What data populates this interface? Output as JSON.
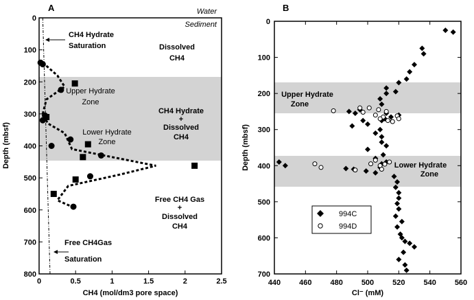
{
  "panels": [
    {
      "label": "A",
      "xlabel": "CH4 (mol/dm3 pore space)",
      "ylabel": "Depth (mbsf)",
      "xticks": [
        "0",
        "0.5",
        "1",
        "1.5",
        "2",
        "2.5"
      ],
      "yticks": [
        "0",
        "100",
        "200",
        "300",
        "400",
        "500",
        "600",
        "700",
        "800"
      ],
      "annotations": {
        "water": "Water",
        "sediment": "Sediment",
        "hydrate_saturation": [
          "CH4 Hydrate",
          "Saturation"
        ],
        "dissolved": [
          "Dissolved",
          "CH4"
        ],
        "upper_zone": [
          "Upper Hydrate",
          "Zone"
        ],
        "hydrate_dissolved": [
          "CH4 Hydrate",
          "+",
          "Dissolved",
          "CH4"
        ],
        "lower_zone": [
          "Lower Hydrate",
          "Zone"
        ],
        "free_gas": [
          "Free CH4 Gas",
          "+",
          "Dissolved",
          "CH4"
        ],
        "gas_saturation": [
          "Free CH4Gas",
          "Saturation"
        ]
      }
    },
    {
      "label": "B",
      "xlabel": "Cl⁻ (mM)",
      "ylabel": "Depth (mbsf)",
      "xticks": [
        "440",
        "460",
        "480",
        "500",
        "520",
        "540",
        "560"
      ],
      "yticks": [
        "0",
        "100",
        "200",
        "300",
        "400",
        "500",
        "600",
        "700"
      ],
      "annotations": {
        "upper_zone": [
          "Upper Hydrate",
          "Zone"
        ],
        "lower_zone": [
          "Lower Hydrate",
          "Zone"
        ]
      },
      "legend": [
        "994C",
        "994D"
      ]
    }
  ],
  "chart_data": [
    {
      "type": "scatter",
      "panel": "A",
      "xlabel": "CH4 (mol/dm3 pore space)",
      "ylabel": "Depth (mbsf)",
      "xlim": [
        0,
        2.5
      ],
      "ylim": [
        800,
        0
      ],
      "y_inverted": true,
      "shaded_band": [
        190,
        450
      ],
      "series": [
        {
          "marker": "circle",
          "points": [
            [
              0.02,
              140
            ],
            [
              0.05,
              145
            ],
            [
              0.3,
              225
            ],
            [
              0.08,
              305
            ],
            [
              0.05,
              320
            ],
            [
              0.43,
              380
            ],
            [
              0.17,
              400
            ],
            [
              0.85,
              430
            ],
            [
              0.7,
              495
            ],
            [
              0.47,
              590
            ]
          ]
        },
        {
          "marker": "square",
          "points": [
            [
              0.49,
              205
            ],
            [
              0.1,
              310
            ],
            [
              0.67,
              395
            ],
            [
              0.6,
              435
            ],
            [
              2.13,
              462
            ],
            [
              0.5,
              505
            ],
            [
              0.2,
              550
            ]
          ]
        },
        {
          "style": "dashed",
          "points": [
            [
              0.05,
              140
            ],
            [
              0.25,
              180
            ],
            [
              0.35,
              215
            ],
            [
              0.1,
              255
            ],
            [
              0.05,
              300
            ],
            [
              0.12,
              330
            ],
            [
              0.35,
              360
            ],
            [
              0.45,
              410
            ],
            [
              1.0,
              435
            ],
            [
              1.6,
              462
            ],
            [
              1.1,
              490
            ],
            [
              0.4,
              525
            ],
            [
              0.25,
              570
            ],
            [
              0.45,
              590
            ]
          ]
        },
        {
          "name": "CH4 Hydrate Saturation",
          "style": "dash-dot",
          "points": [
            [
              0.05,
              0
            ],
            [
              0.15,
              800
            ]
          ]
        }
      ]
    },
    {
      "type": "scatter",
      "panel": "B",
      "xlabel": "Cl⁻ (mM)",
      "ylabel": "Depth (mbsf)",
      "xlim": [
        440,
        560
      ],
      "ylim": [
        700,
        0
      ],
      "y_inverted": true,
      "shaded_bands": [
        [
          180,
          265
        ],
        [
          380,
          470
        ]
      ],
      "legend_position": "bottom-left",
      "series": [
        {
          "name": "994C",
          "marker": "filled-diamond",
          "points": [
            [
              550,
              25
            ],
            [
              555,
              30
            ],
            [
              535,
              75
            ],
            [
              536,
              90
            ],
            [
              530,
              120
            ],
            [
              527,
              140
            ],
            [
              525,
              160
            ],
            [
              520,
              170
            ],
            [
              512,
              185
            ],
            [
              518,
              195
            ],
            [
              512,
              200
            ],
            [
              508,
              215
            ],
            [
              509,
              230
            ],
            [
              495,
              245
            ],
            [
              488,
              250
            ],
            [
              492,
              255
            ],
            [
              512,
              255
            ],
            [
              520,
              260
            ],
            [
              515,
              265
            ],
            [
              511,
              270
            ],
            [
              509,
              275
            ],
            [
              497,
              275
            ],
            [
              500,
              285
            ],
            [
              490,
              290
            ],
            [
              508,
              300
            ],
            [
              505,
              310
            ],
            [
              509,
              320
            ],
            [
              509,
              335
            ],
            [
              512,
              345
            ],
            [
              500,
              355
            ],
            [
              510,
              370
            ],
            [
              505,
              380
            ],
            [
              512,
              390
            ],
            [
              509,
              395
            ],
            [
              508,
              405
            ],
            [
              491,
              410
            ],
            [
              499,
              415
            ],
            [
              486,
              408
            ],
            [
              447,
              400
            ],
            [
              443,
              390
            ],
            [
              505,
              420
            ],
            [
              517,
              430
            ],
            [
              519,
              445
            ],
            [
              518,
              460
            ],
            [
              520,
              475
            ],
            [
              520,
              490
            ],
            [
              519,
              505
            ],
            [
              520,
              520
            ],
            [
              518,
              540
            ],
            [
              522,
              555
            ],
            [
              519,
              570
            ],
            [
              521,
              590
            ],
            [
              522,
              600
            ],
            [
              524,
              610
            ],
            [
              527,
              615
            ],
            [
              530,
              625
            ],
            [
              523,
              640
            ],
            [
              520,
              660
            ],
            [
              524,
              675
            ],
            [
              525,
              690
            ]
          ]
        },
        {
          "name": "994D",
          "marker": "open-circle",
          "points": [
            [
              478,
              248
            ],
            [
              495,
              240
            ],
            [
              497,
              252
            ],
            [
              501,
              240
            ],
            [
              507,
              245
            ],
            [
              512,
              250
            ],
            [
              505,
              260
            ],
            [
              510,
              265
            ],
            [
              508,
              270
            ],
            [
              513,
              275
            ],
            [
              516,
              278
            ],
            [
              519,
              262
            ],
            [
              520,
              270
            ],
            [
              466,
              395
            ],
            [
              470,
              405
            ],
            [
              492,
              412
            ],
            [
              502,
              395
            ],
            [
              505,
              385
            ],
            [
              508,
              400
            ],
            [
              509,
              410
            ],
            [
              511,
              396
            ],
            [
              514,
              390
            ]
          ]
        }
      ]
    }
  ]
}
